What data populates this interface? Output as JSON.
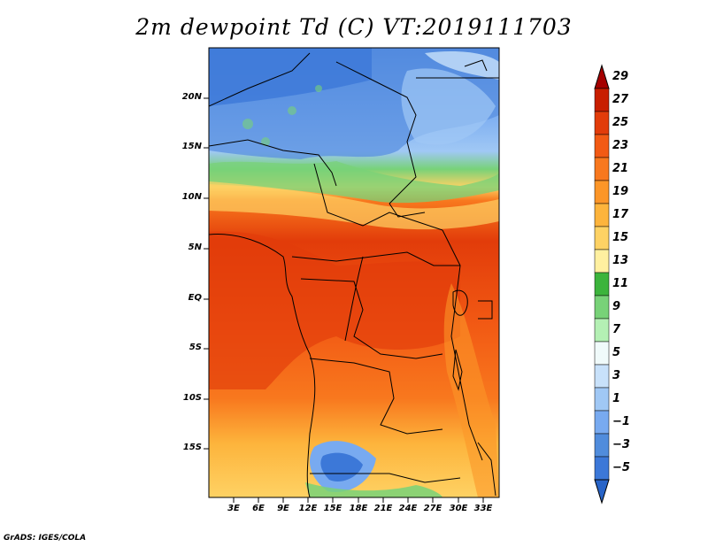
{
  "title": "2m dewpoint Td (C) VT:2019111703",
  "footer": "GrADS: IGES/COLA",
  "map": {
    "lat_labels": [
      "20N",
      "15N",
      "10N",
      "5N",
      "EQ",
      "5S",
      "10S",
      "15S"
    ],
    "lon_labels": [
      "3E",
      "6E",
      "9E",
      "12E",
      "15E",
      "18E",
      "21E",
      "24E",
      "27E",
      "30E",
      "33E"
    ]
  },
  "colorbar": {
    "labels": [
      "29",
      "27",
      "25",
      "23",
      "21",
      "19",
      "17",
      "15",
      "13",
      "11",
      "9",
      "7",
      "5",
      "3",
      "1",
      "−1",
      "−3",
      "−5"
    ],
    "colors": [
      "#a50000",
      "#c81e00",
      "#e23c0a",
      "#f25a14",
      "#f8781e",
      "#fc9628",
      "#fdb43c",
      "#fed264",
      "#fff0a0",
      "#3cb43c",
      "#78d278",
      "#b4f0b4",
      "#f0fafa",
      "#c8e1fa",
      "#a0c8f5",
      "#78aaf0",
      "#508cdc",
      "#3c78d8",
      "#2864c8"
    ]
  }
}
